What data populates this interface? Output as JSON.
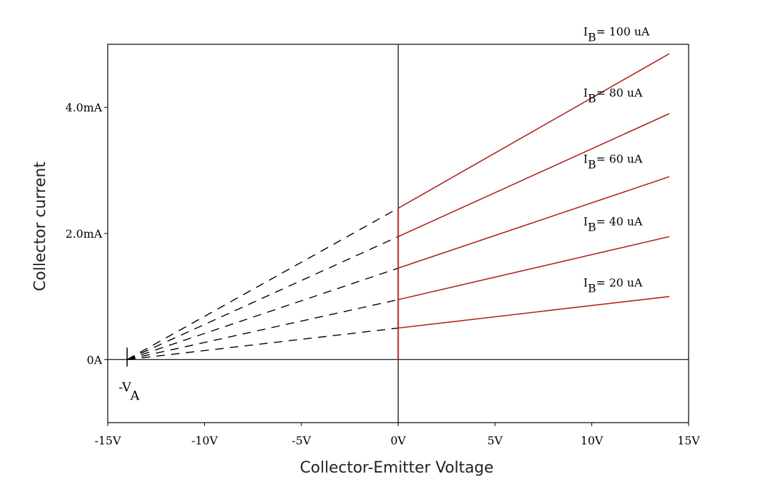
{
  "chart_data": {
    "type": "line",
    "title": "",
    "xlabel": "Collector-Emitter Voltage",
    "ylabel": "Collector current",
    "xlim": [
      -15,
      15
    ],
    "ylim": [
      -1,
      5
    ],
    "x_ticks": [
      {
        "value": -15,
        "label": "-15V"
      },
      {
        "value": -10,
        "label": "-10V"
      },
      {
        "value": -5,
        "label": "-5V"
      },
      {
        "value": 0,
        "label": "0V"
      },
      {
        "value": 5,
        "label": "5V"
      },
      {
        "value": 10,
        "label": "10V"
      },
      {
        "value": 15,
        "label": "15V"
      }
    ],
    "y_ticks": [
      {
        "value": 0,
        "label": "0A"
      },
      {
        "value": 2,
        "label": "2.0mA"
      },
      {
        "value": 4,
        "label": "4.0mA"
      }
    ],
    "early_voltage": -14,
    "early_voltage_label": {
      "main": "-V",
      "sub": "A"
    },
    "series": [
      {
        "name": "IB = 20 uA",
        "label_main": "I",
        "label_sub": "B",
        "label_rest": "= 20 uA",
        "x": [
          0,
          14
        ],
        "y": [
          0.5,
          1.0
        ]
      },
      {
        "name": "IB = 40 uA",
        "label_main": "I",
        "label_sub": "B",
        "label_rest": "= 40 uA",
        "x": [
          0,
          14
        ],
        "y": [
          0.95,
          1.95
        ]
      },
      {
        "name": "IB = 60 uA",
        "label_main": "I",
        "label_sub": "B",
        "label_rest": "= 60 uA",
        "x": [
          0,
          14
        ],
        "y": [
          1.45,
          2.9
        ]
      },
      {
        "name": "IB = 80 uA",
        "label_main": "I",
        "label_sub": "B",
        "label_rest": "= 80 uA",
        "x": [
          0,
          14
        ],
        "y": [
          1.95,
          3.9
        ]
      },
      {
        "name": "IB = 100 uA",
        "label_main": "I",
        "label_sub": "B",
        "label_rest": "= 100 uA",
        "x": [
          0,
          14
        ],
        "y": [
          2.4,
          4.85
        ]
      }
    ],
    "colors": {
      "curve": "#b22222",
      "extrapolation": "#000000",
      "axes": "#000000"
    },
    "grid": false
  }
}
